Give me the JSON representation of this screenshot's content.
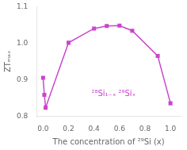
{
  "chart_data": {
    "type": "line",
    "x": [
      0.0,
      0.01,
      0.02,
      0.2,
      0.4,
      0.5,
      0.6,
      0.7,
      0.9,
      1.0
    ],
    "values": [
      0.905,
      0.858,
      0.823,
      1.001,
      1.04,
      1.047,
      1.048,
      1.034,
      0.965,
      0.835
    ],
    "color": "#CC44CC",
    "marker": "square",
    "line_style": "solid",
    "x_label": "The concentration of ²⁹Si (x)",
    "y_label": "ZTₘₐₓ",
    "xlim": [
      -0.05,
      1.08
    ],
    "ylim": [
      0.8,
      1.1
    ],
    "xticks": [
      {
        "value": 0.0,
        "label": "0.0"
      },
      0.2,
      0.4,
      0.6,
      0.8,
      {
        "value": 1.0,
        "label": "1.0"
      }
    ],
    "yticks": [
      0.8,
      0.9,
      {
        "value": 1.0,
        "label": "1.0"
      },
      1.1
    ],
    "annotations": [
      {
        "text": "²⁸Si₁₋ₓ ²⁹Siₓ",
        "x": 0.38,
        "y": 0.855
      }
    ],
    "grid": false
  }
}
